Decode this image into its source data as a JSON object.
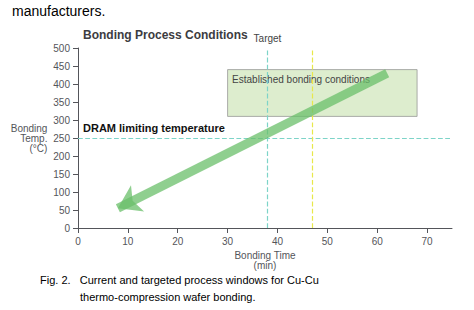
{
  "chart_data": {
    "type": "annotation",
    "title": "Bonding Process Conditions",
    "xlabel": "Bonding Time\n(min)",
    "ylabel": "Bonding\nTemp.\n(°C)",
    "xlim": [
      0,
      75
    ],
    "ylim": [
      0,
      500
    ],
    "xticks": [
      0,
      10,
      20,
      30,
      40,
      50,
      60,
      70
    ],
    "yticks": [
      0,
      50,
      100,
      150,
      200,
      250,
      300,
      350,
      400,
      450,
      500
    ],
    "grid": false,
    "region": {
      "x": 30,
      "y": 310,
      "width": 38,
      "height": 130,
      "label": "Established bonding conditions",
      "color": "#d4e8c2",
      "edge_color": "#999999"
    },
    "arrow": {
      "x": [
        62,
        8
      ],
      "y": [
        430,
        55
      ],
      "color": "#6abf69"
    },
    "hlines": [
      {
        "y": 250,
        "label": "DRAM limiting temperature",
        "color": "#7dd4c8"
      }
    ],
    "vlines": [
      {
        "x": 38,
        "label": "Target",
        "color": "#7dd4c8"
      },
      {
        "x": 47,
        "color": "#e8e84a"
      }
    ],
    "page_texts": {
      "above": "manufacturers.",
      "below": [
        "Fig. 2.   Current and targeted process windows for Cu-Cu",
        "thermo-compression wafer bonding."
      ]
    }
  }
}
